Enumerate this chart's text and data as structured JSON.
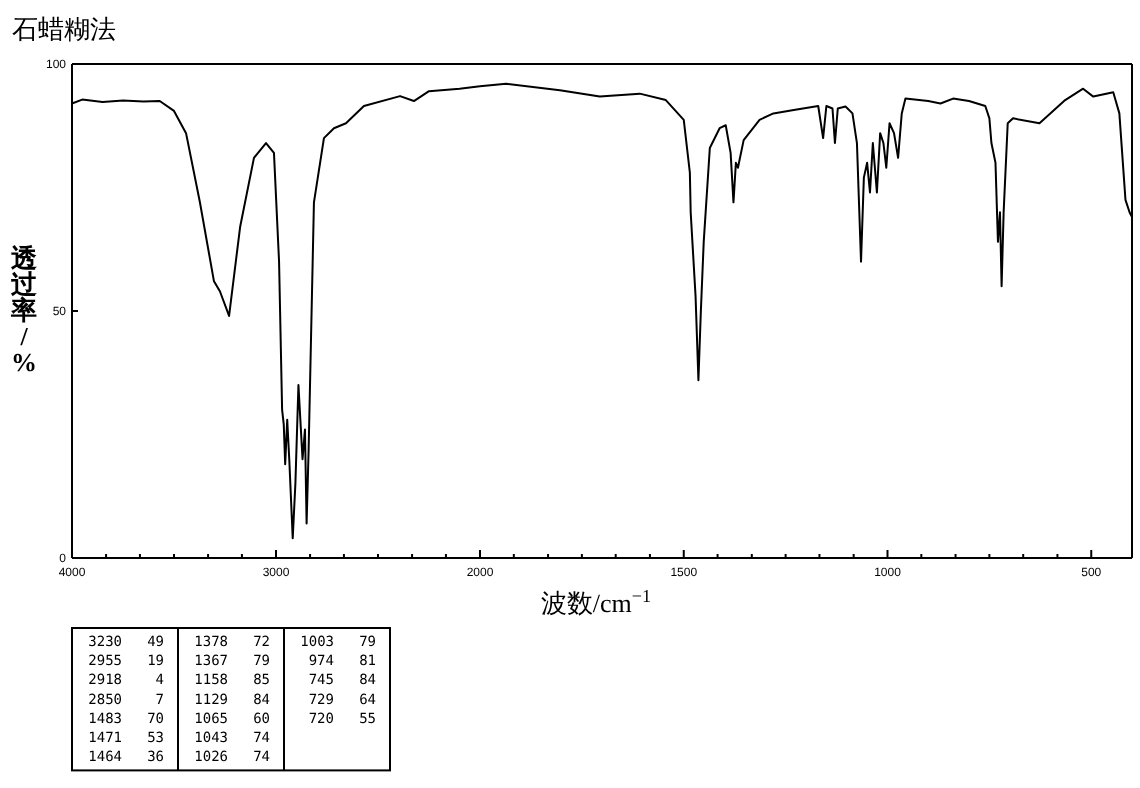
{
  "chart_data": [
    {
      "type": "line",
      "title": "石蜡糊法",
      "ylabel": "透过率/%",
      "xlim": [
        4000,
        2000
      ],
      "ylim": [
        0,
        100
      ],
      "xticks": [
        4000,
        {
          "value": 3833,
          "label": null
        },
        {
          "value": 3667,
          "label": null
        },
        {
          "value": 3500,
          "label": null
        },
        {
          "value": 3333,
          "label": null
        },
        {
          "value": 3167,
          "label": null
        },
        3000,
        {
          "value": 2833,
          "label": null
        },
        {
          "value": 2667,
          "label": null
        },
        {
          "value": 2500,
          "label": null
        },
        {
          "value": 2333,
          "label": null
        },
        {
          "value": 2167,
          "label": null
        },
        2000
      ],
      "yticks": [
        0,
        50,
        100
      ],
      "series": [
        {
          "color": "#000000",
          "x": [
            4000,
            3950,
            3850,
            3750,
            3650,
            3570,
            3500,
            3441,
            3373,
            3304,
            3275,
            3230,
            3176,
            3108,
            3049,
            3010,
            2985,
            2970,
            2962,
            2955,
            2945,
            2935,
            2918,
            2905,
            2890,
            2870,
            2858,
            2850,
            2840,
            2814,
            2765,
            2716,
            2657,
            2569,
            2392,
            2324,
            2250,
            2100,
            2000
          ],
          "values": [
            92,
            92.8,
            92.3,
            92.6,
            92.4,
            92.5,
            90.5,
            86,
            72,
            56,
            54,
            49,
            67,
            81,
            84,
            82,
            60,
            30,
            27,
            19,
            28,
            20,
            4,
            15,
            35,
            20,
            26,
            7,
            22,
            72,
            85,
            87,
            88,
            91.5,
            93.5,
            92.5,
            94.5,
            95,
            95.5
          ]
        }
      ],
      "annotations": [
        "3230 49",
        "2955 19",
        "2918 4",
        "2850 7",
        "1483 70",
        "1471 53",
        "1464 36",
        "1378 72",
        "1367 79",
        "1158 85",
        "1129 84",
        "1065 60",
        "1043 74",
        "1026 74",
        "1003 79",
        "974 81",
        "745 84",
        "729 64",
        "720 55"
      ]
    },
    {
      "type": "line",
      "xlabel": "波数/cm$^{−1}$",
      "xlim": [
        2000,
        400
      ],
      "ylim": [
        0,
        100
      ],
      "tick_labels": "x",
      "xticks": [
        {
          "value": 1917,
          "label": null
        },
        {
          "value": 1833,
          "label": null
        },
        {
          "value": 1750,
          "label": null
        },
        {
          "value": 1667,
          "label": null
        },
        {
          "value": 1583,
          "label": null
        },
        1500,
        {
          "value": 1417,
          "label": null
        },
        {
          "value": 1333,
          "label": null
        },
        {
          "value": 1250,
          "label": null
        },
        {
          "value": 1167,
          "label": null
        },
        {
          "value": 1083,
          "label": null
        },
        1000,
        {
          "value": 917,
          "label": null
        },
        {
          "value": 833,
          "label": null
        },
        {
          "value": 750,
          "label": null
        },
        {
          "value": 667,
          "label": null
        },
        {
          "value": 583,
          "label": null
        },
        500
      ],
      "series": [
        {
          "color": "#000000",
          "x": [
            2000,
            1936,
            1804,
            1706,
            1608,
            1544,
            1500,
            1485,
            1483,
            1471,
            1464,
            1458,
            1451,
            1436,
            1412,
            1397,
            1385,
            1378,
            1372,
            1367,
            1353,
            1314,
            1280,
            1230,
            1170,
            1158,
            1150,
            1135,
            1129,
            1122,
            1103,
            1086,
            1075,
            1065,
            1058,
            1050,
            1043,
            1036,
            1026,
            1018,
            1010,
            1003,
            995,
            984,
            974,
            965,
            956,
            900,
            870,
            839,
            800,
            760,
            750,
            745,
            735,
            729,
            724,
            720,
            715,
            705,
            692,
            627,
            564,
            520,
            495,
            446,
            431,
            416,
            406,
            400
          ],
          "values": [
            95.5,
            96,
            94.7,
            93.4,
            94,
            92.7,
            88.7,
            78,
            70,
            53,
            36,
            50,
            64,
            83,
            87,
            87.6,
            82,
            72,
            80,
            79,
            84.6,
            88.7,
            90,
            90.7,
            91.5,
            85,
            91.5,
            91,
            84,
            91,
            91.4,
            90,
            84,
            60,
            77,
            80,
            74,
            84,
            74,
            86,
            84,
            79,
            88,
            86,
            81,
            90,
            93,
            92.5,
            92,
            93,
            92.5,
            91.5,
            89,
            84,
            80,
            64,
            70,
            55,
            70,
            88,
            89,
            88,
            92.7,
            95,
            93.4,
            94.3,
            90,
            72.5,
            70,
            69
          ]
        }
      ]
    }
  ]
}
